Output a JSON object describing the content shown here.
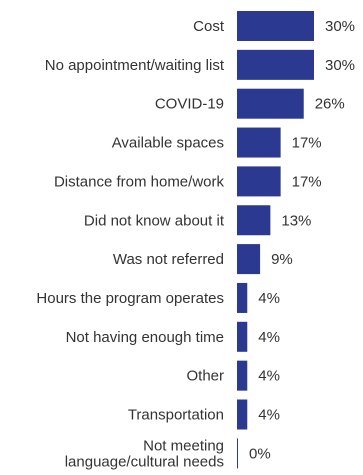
{
  "chart_data": {
    "type": "bar",
    "orientation": "horizontal",
    "categories": [
      [
        "Cost"
      ],
      [
        "No appointment/waiting list"
      ],
      [
        "COVID-19"
      ],
      [
        "Available spaces"
      ],
      [
        "Distance from home/work"
      ],
      [
        "Did not know about it"
      ],
      [
        "Was not referred"
      ],
      [
        "Hours the program operates"
      ],
      [
        "Not having enough time"
      ],
      [
        "Other"
      ],
      [
        "Transportation"
      ],
      [
        "Not meeting",
        "language/cultural needs"
      ]
    ],
    "values": [
      30,
      30,
      26,
      17,
      17,
      13,
      9,
      4,
      4,
      4,
      4,
      0
    ],
    "value_labels": [
      "30%",
      "30%",
      "26%",
      "17%",
      "17%",
      "13%",
      "9%",
      "4%",
      "4%",
      "4%",
      "4%",
      "0%"
    ],
    "xlim": [
      0,
      30
    ],
    "grid": false,
    "legend": "none",
    "bar_color": "#2b3990",
    "axis_color": "#2b3990"
  }
}
